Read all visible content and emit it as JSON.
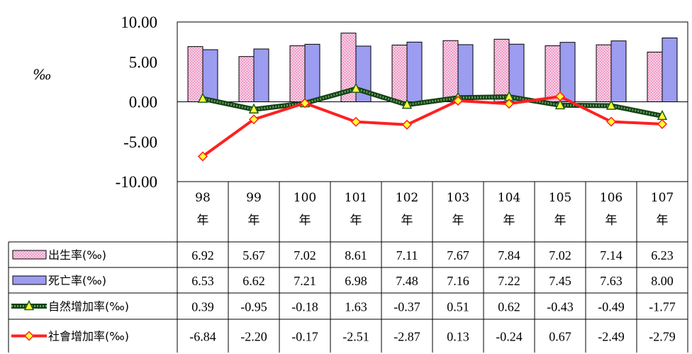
{
  "chart_data": {
    "type": "bar",
    "unit_label": "‰",
    "categories": [
      "98\n年",
      "99\n年",
      "100\n年",
      "101\n年",
      "102\n年",
      "103\n年",
      "104\n年",
      "105\n年",
      "106\n年",
      "107\n年"
    ],
    "ylim": [
      -10,
      10
    ],
    "yticks": [
      "10.00",
      "5.00",
      "0.00",
      "-5.00",
      "-10.00"
    ],
    "series": [
      {
        "name": "出生率(‰)",
        "kind": "bar",
        "color": "#f4b8d6",
        "values": [
          6.92,
          5.67,
          7.02,
          8.61,
          7.11,
          7.67,
          7.84,
          7.02,
          7.14,
          6.23
        ]
      },
      {
        "name": "死亡率(‰)",
        "kind": "bar",
        "color": "#9c9cf0",
        "values": [
          6.53,
          6.62,
          7.21,
          6.98,
          7.48,
          7.16,
          7.22,
          7.45,
          7.63,
          8.0
        ]
      },
      {
        "name": "自然增加率(‰)",
        "kind": "line",
        "color": "#1e5a1e",
        "marker": "triangle",
        "values": [
          0.39,
          -0.95,
          -0.18,
          1.63,
          -0.37,
          0.51,
          0.62,
          -0.43,
          -0.49,
          -1.77
        ]
      },
      {
        "name": "社會增加率(‰)",
        "kind": "line",
        "color": "#ff2020",
        "marker": "diamond",
        "values": [
          -6.84,
          -2.2,
          -0.17,
          -2.51,
          -2.87,
          0.13,
          -0.24,
          0.67,
          -2.49,
          -2.79
        ]
      }
    ],
    "table": [
      [
        "6.92",
        "5.67",
        "7.02",
        "8.61",
        "7.11",
        "7.67",
        "7.84",
        "7.02",
        "7.14",
        "6.23"
      ],
      [
        "6.53",
        "6.62",
        "7.21",
        "6.98",
        "7.48",
        "7.16",
        "7.22",
        "7.45",
        "7.63",
        "8.00"
      ],
      [
        "0.39",
        "-0.95",
        "-0.18",
        "1.63",
        "-0.37",
        "0.51",
        "0.62",
        "-0.43",
        "-0.49",
        "-1.77"
      ],
      [
        "-6.84",
        "-2.20",
        "-0.17",
        "-2.51",
        "-2.87",
        "0.13",
        "-0.24",
        "0.67",
        "-2.49",
        "-2.79"
      ]
    ],
    "grid": false,
    "legend": "data-table-left"
  }
}
